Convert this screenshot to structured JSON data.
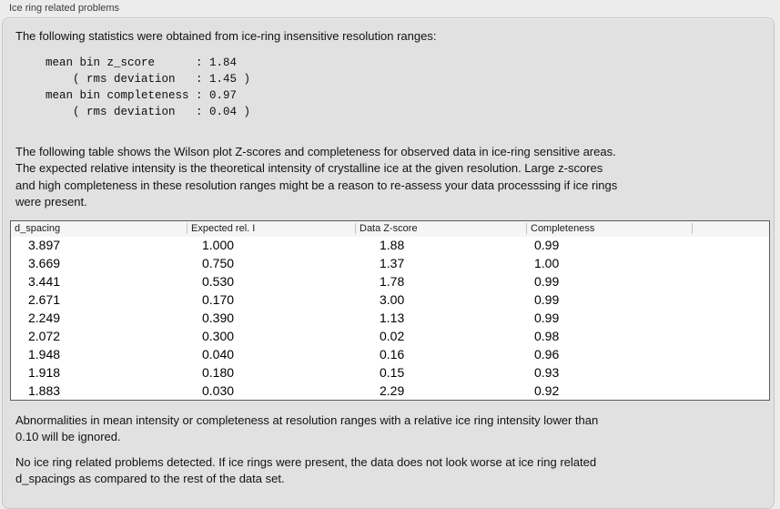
{
  "window": {
    "caption": "Ice ring related problems"
  },
  "panel": {
    "intro": "The following statistics were obtained from ice-ring insensitive resolution ranges:",
    "stats_block": "mean bin z_score      : 1.84\n    ( rms deviation   : 1.45 )\nmean bin completeness : 0.97\n    ( rms deviation   : 0.04 )",
    "stats": {
      "mean_bin_z_score": "1.84",
      "z_score_rms_deviation": "1.45",
      "mean_bin_completeness": "0.97",
      "completeness_rms_deviation": "0.04"
    },
    "table_description": "The following table shows the Wilson plot Z-scores and completeness for observed data in ice-ring sensitive areas.\nThe expected relative intensity is the theoretical intensity of crystalline ice at the given resolution. Large z-scores\nand high completeness in these resolution ranges might be a reason to re-assess your data processsing if ice rings\nwere present.",
    "note_ignore": "Abnormalities in mean intensity or completeness at resolution ranges with a relative ice ring intensity lower than\n0.10 will be ignored.",
    "conclusion": "No ice ring related problems detected. If ice rings were present, the data does not look worse at ice ring related\nd_spacings as compared to the rest of the data set."
  },
  "table": {
    "columns": [
      "d_spacing",
      "Expected rel. I",
      "Data Z-score",
      "Completeness",
      ""
    ],
    "rows": [
      [
        "3.897",
        "1.000",
        "1.88",
        "0.99"
      ],
      [
        "3.669",
        "0.750",
        "1.37",
        "1.00"
      ],
      [
        "3.441",
        "0.530",
        "1.78",
        "0.99"
      ],
      [
        "2.671",
        "0.170",
        "3.00",
        "0.99"
      ],
      [
        "2.249",
        "0.390",
        "1.13",
        "0.99"
      ],
      [
        "2.072",
        "0.300",
        "0.02",
        "0.98"
      ],
      [
        "1.948",
        "0.040",
        "0.16",
        "0.96"
      ],
      [
        "1.918",
        "0.180",
        "0.15",
        "0.93"
      ],
      [
        "1.883",
        "0.030",
        "2.29",
        "0.92"
      ]
    ]
  },
  "colors": {
    "page_background": "#ececec",
    "panel_background": "#e1e1e1",
    "panel_border": "#c6c6c6",
    "table_border": "#5a5a5a",
    "table_header_background": "#f5f5f5",
    "header_divider": "#c3c3c3",
    "text": "#121212"
  }
}
